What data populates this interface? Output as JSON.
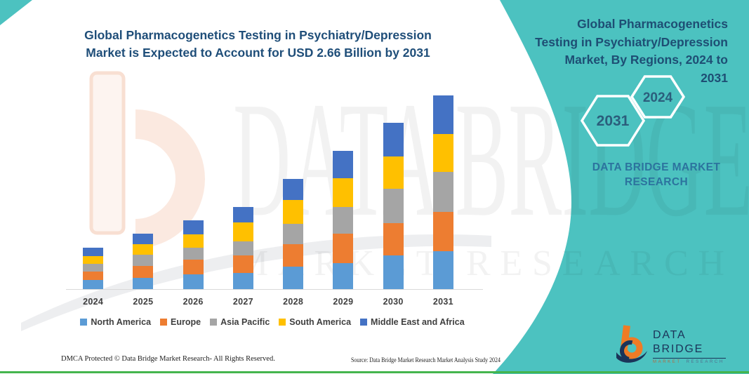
{
  "chart_title": {
    "line1": "Global Pharmacogenetics Testing in Psychiatry/Depression",
    "line2": "Market is Expected to Account for USD 2.66 Billion by 2031"
  },
  "chart_data": {
    "type": "bar",
    "stacked": true,
    "title": "Global Pharmacogenetics Testing in Psychiatry/Depression Market is Expected to Account for USD 2.66 Billion by 2031",
    "unit": "USD Billion",
    "categories": [
      "2024",
      "2025",
      "2026",
      "2027",
      "2028",
      "2029",
      "2030",
      "2031"
    ],
    "series": [
      {
        "name": "North America",
        "color": "#5B9BD5",
        "values": [
          0.13,
          0.15,
          0.2,
          0.22,
          0.31,
          0.36,
          0.46,
          0.52
        ]
      },
      {
        "name": "Europe",
        "color": "#ED7D31",
        "values": [
          0.11,
          0.17,
          0.2,
          0.24,
          0.31,
          0.4,
          0.45,
          0.54
        ]
      },
      {
        "name": "Asia Pacific",
        "color": "#A5A5A5",
        "values": [
          0.11,
          0.15,
          0.17,
          0.2,
          0.28,
          0.37,
          0.47,
          0.55
        ]
      },
      {
        "name": "South America",
        "color": "#FFC000",
        "values": [
          0.1,
          0.15,
          0.18,
          0.26,
          0.32,
          0.39,
          0.44,
          0.52
        ]
      },
      {
        "name": "Middle East and Africa",
        "color": "#4472C4",
        "values": [
          0.12,
          0.14,
          0.19,
          0.21,
          0.29,
          0.38,
          0.46,
          0.53
        ]
      }
    ],
    "totals": [
      0.57,
      0.76,
      0.94,
      1.13,
      1.51,
      1.9,
      2.28,
      2.66
    ],
    "ylim": [
      0,
      2.8
    ],
    "grid": false,
    "legend_position": "bottom"
  },
  "panel": {
    "title_lines": [
      "Global Pharmacogenetics",
      "Testing in Psychiatry/Depression",
      "Market, By Regions, 2024 to",
      "2031"
    ],
    "hexagons": [
      {
        "year": "2031"
      },
      {
        "year": "2024"
      }
    ],
    "brand_line1": "DATA BRIDGE MARKET",
    "brand_line2": "RESEARCH"
  },
  "logo": {
    "title": "DATA BRIDGE",
    "sub1": "MARKET",
    "sub2": "RESEARCH"
  },
  "footer": {
    "left": "DMCA Protected © Data Bridge Market Research-  All Rights Reserved.",
    "right": "Source: Data Bridge Market Research  Market Analysis Study 2024"
  },
  "watermark": {
    "big_text": "DATA BRIDGE",
    "sub_text": "MARKET RESEARCH"
  },
  "colors": {
    "teal_panel": "#4CC2C0",
    "title_blue": "#1F4E79",
    "panel_text_blue": "#1E4E74",
    "hexagon_year_blue": "#2B5E7C",
    "brand_text_blue": "#2C739E",
    "tick_text": "#3F3F3F",
    "axis_line": "#D9D9D9",
    "logo_navy": "#1B3459",
    "logo_orange": "#EF7B25",
    "bottom_line_green": "#44B54D",
    "watermark_peach": "#FBE3D7"
  }
}
